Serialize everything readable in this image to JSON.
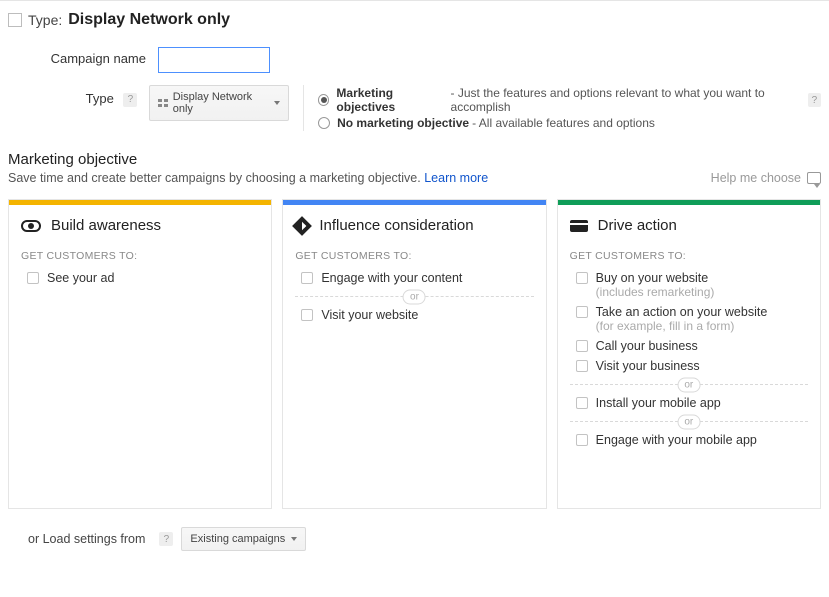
{
  "header": {
    "label": "Type:",
    "value": "Display Network only"
  },
  "form": {
    "campaign_label": "Campaign name",
    "campaign_value": "",
    "type_label": "Type",
    "type_button": "Display Network only"
  },
  "radios": {
    "opt1_label": "Marketing objectives",
    "opt1_sub": "- Just the features and options relevant to what you want to accomplish",
    "opt2_label": "No marketing objective",
    "opt2_sub": "- All available features and options",
    "selected": 0
  },
  "section": {
    "title": "Marketing objective",
    "subtitle": "Save time and create better campaigns by choosing a marketing objective.",
    "learn_more": "Learn more",
    "help_me": "Help me choose"
  },
  "cards": [
    {
      "bar_color": "bar-orange",
      "icon": "eye",
      "title": "Build awareness",
      "sub": "GET CUSTOMERS TO:",
      "groups": [
        [
          {
            "text": "See your ad"
          }
        ]
      ]
    },
    {
      "bar_color": "bar-blue",
      "icon": "diamond",
      "title": "Influence consideration",
      "sub": "GET CUSTOMERS TO:",
      "groups": [
        [
          {
            "text": "Engage with your content"
          }
        ],
        [
          {
            "text": "Visit your website"
          }
        ]
      ]
    },
    {
      "bar_color": "bar-green",
      "icon": "cc",
      "title": "Drive action",
      "sub": "GET CUSTOMERS TO:",
      "groups": [
        [
          {
            "text": "Buy on your website",
            "sub": "(includes remarketing)"
          },
          {
            "text": "Take an action on your website",
            "sub": "(for example, fill in a form)"
          },
          {
            "text": "Call your business"
          },
          {
            "text": "Visit your business"
          }
        ],
        [
          {
            "text": "Install your mobile app"
          }
        ],
        [
          {
            "text": "Engage with your mobile app"
          }
        ]
      ]
    }
  ],
  "or_label": "or",
  "footer": {
    "prefix": "or Load settings from",
    "button": "Existing campaigns"
  }
}
